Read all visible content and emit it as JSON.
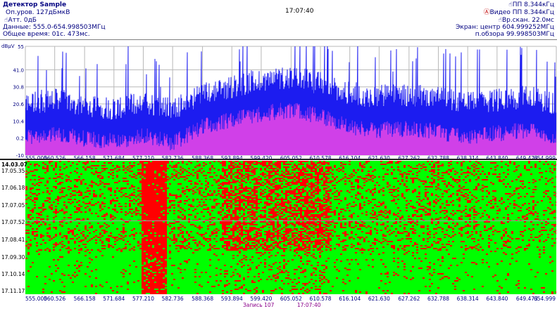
{
  "header": {
    "detector_label": "Детектор",
    "detector_value": "Sample",
    "ref_level": "Оп.уров. 127дБмкВ",
    "attenuation": "Атт. 0дБ",
    "data_range": "Данные:   555.0-654.998503МГц",
    "total_time": "Общее время:  01с. 473мс.",
    "clock": "17:07:40",
    "rbw": "ПП  8.344кГц",
    "vbw": "Видео ПП  8.344кГц",
    "sweep_time": "Вр.скан.  22.0мс",
    "center": "Экран: центр 604.999252МГц",
    "span": "п.обзора 99.998503МГц"
  },
  "spectrum": {
    "unit_label": "dBμV",
    "y_ticks": [
      "55",
      "41.0",
      "30.8",
      "20.6",
      "10.4",
      "0.2",
      "-10"
    ],
    "y_values": [
      55,
      41.0,
      30.8,
      20.6,
      10.4,
      0.2,
      -10
    ],
    "colors": {
      "trace": "#1c1cf0",
      "fill": "#d040e8",
      "grid": "#b8b8b8",
      "bg": "#ffffff"
    }
  },
  "x_ticks": [
    "555.000",
    "560.526",
    "566.158",
    "571.684",
    "577.210",
    "582.736",
    "588.368",
    "593.894",
    "599.420",
    "605.052",
    "610.578",
    "616.104",
    "621.630",
    "627.262",
    "632.788",
    "638.314",
    "643.840",
    "649.473",
    "654.999"
  ],
  "waterfall": {
    "date": "14.03.07",
    "timestamps": [
      "17.05.35",
      "17.06.18",
      "17.07.05",
      "17.07.52",
      "17.08.41",
      "17.09.30",
      "17.10.14",
      "17.11.17"
    ],
    "colors": {
      "low": "#00ff00",
      "high": "#ff0000"
    }
  },
  "footer": {
    "record": "Запись 107",
    "time": "17:07:40"
  },
  "chart_data": {
    "type": "line",
    "title": "",
    "xlabel": "",
    "ylabel": "dBμV",
    "xlim": [
      555.0,
      654.999
    ],
    "ylim": [
      -10,
      55
    ],
    "x_ticks": [
      555.0,
      560.526,
      566.158,
      571.684,
      577.21,
      582.736,
      588.368,
      593.894,
      599.42,
      605.052,
      610.578,
      616.104,
      621.63,
      627.262,
      632.788,
      638.314,
      643.84,
      649.473,
      654.999
    ],
    "x": [
      555,
      560.5,
      566.2,
      571.7,
      577.2,
      582.7,
      588.4,
      593.9,
      599.4,
      605.1,
      610.6,
      616.1,
      621.6,
      627.3,
      632.8,
      638.3,
      643.8,
      649.5,
      655
    ],
    "series": [
      {
        "values": [
          12,
          14,
          11,
          9,
          13,
          8,
          18,
          22,
          26,
          28,
          24,
          18,
          16,
          17,
          15,
          12,
          14,
          16,
          12
        ]
      }
    ]
  }
}
